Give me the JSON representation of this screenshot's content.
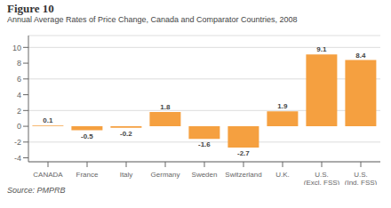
{
  "chart_data": {
    "type": "bar",
    "title": "Figure 10",
    "subtitle": "Annual Average Rates of Price Change, Canada and Comparator Countries, 2008",
    "categories": [
      "CANADA",
      "France",
      "Italy",
      "Germany",
      "Sweden",
      "Switzerland",
      "U.K.",
      "U.S.\n(Excl. FSS)",
      "U.S.\n(Ind. FSS)"
    ],
    "values": [
      0.1,
      -0.5,
      -0.2,
      1.8,
      -1.6,
      -2.7,
      1.9,
      9.1,
      8.4
    ],
    "color": "#F5A040",
    "ylim": [
      -4.5,
      11.5
    ],
    "yticks": [
      -4,
      -2,
      0,
      2,
      4,
      6,
      8,
      10
    ],
    "grid": true,
    "data_labels": true,
    "source": "Source: PMPRB"
  }
}
